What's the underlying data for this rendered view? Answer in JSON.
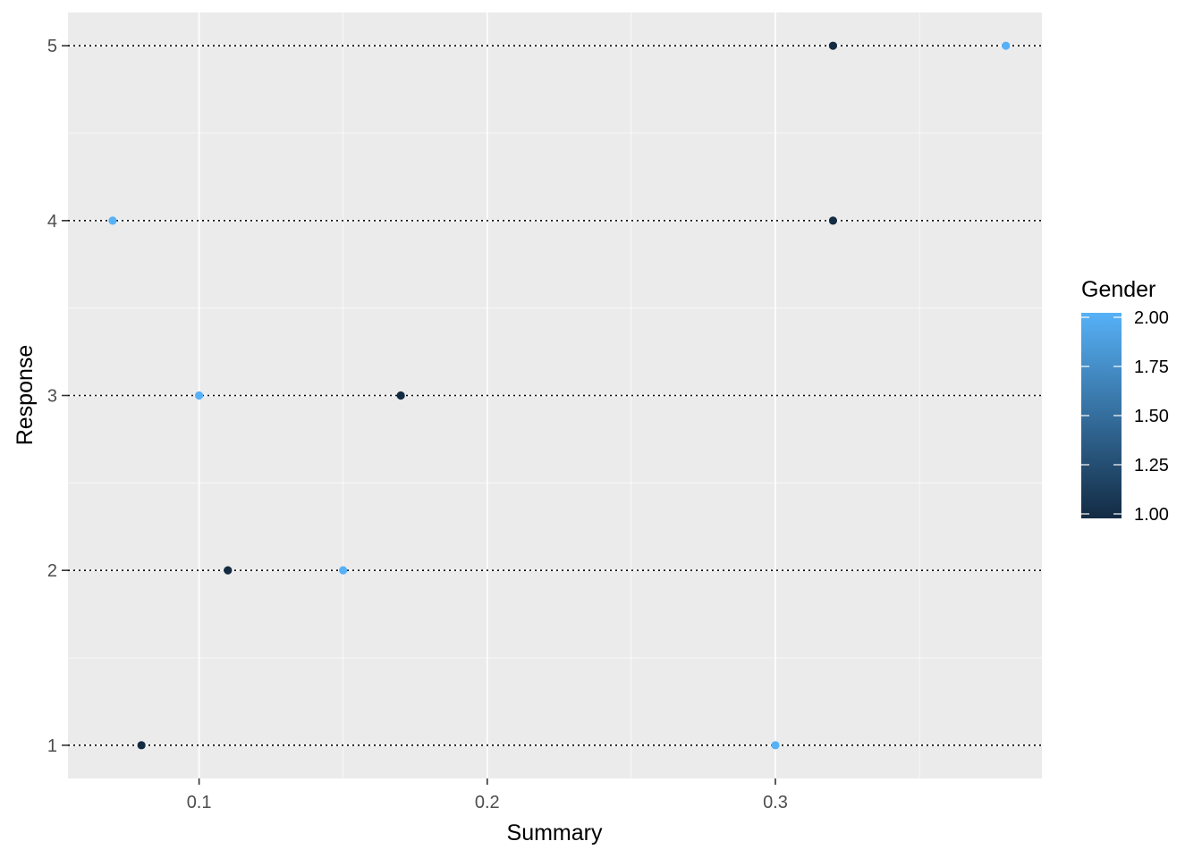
{
  "chart_data": {
    "type": "scatter",
    "xlabel": "Summary",
    "ylabel": "Response",
    "xlim": [
      0.0545,
      0.3925
    ],
    "ylim": [
      0.81,
      5.19
    ],
    "x_ticks": [
      0.1,
      0.2,
      0.3
    ],
    "x_tick_labels": [
      "0.1",
      "0.2",
      "0.3"
    ],
    "y_ticks": [
      1,
      2,
      3,
      4,
      5
    ],
    "y_tick_labels": [
      "1",
      "2",
      "3",
      "4",
      "5"
    ],
    "grid": true,
    "reference_lines": {
      "orientation": "horizontal",
      "style": "dotted",
      "values": [
        1,
        2,
        3,
        4,
        5
      ]
    },
    "points": [
      {
        "x": 0.08,
        "y": 1,
        "gender": 1
      },
      {
        "x": 0.3,
        "y": 1,
        "gender": 2
      },
      {
        "x": 0.11,
        "y": 2,
        "gender": 1
      },
      {
        "x": 0.15,
        "y": 2,
        "gender": 2
      },
      {
        "x": 0.1,
        "y": 3,
        "gender": 2
      },
      {
        "x": 0.17,
        "y": 3,
        "gender": 1
      },
      {
        "x": 0.07,
        "y": 4,
        "gender": 2
      },
      {
        "x": 0.32,
        "y": 4,
        "gender": 1
      },
      {
        "x": 0.32,
        "y": 5,
        "gender": 1
      },
      {
        "x": 0.38,
        "y": 5,
        "gender": 2
      }
    ],
    "color_scale": {
      "title": "Gender",
      "range": [
        1,
        2
      ],
      "low_color": "#132B43",
      "high_color": "#56B1F7",
      "breaks": [
        1.0,
        1.25,
        1.5,
        1.75,
        2.0
      ],
      "break_labels": [
        "1.00",
        "1.25",
        "1.50",
        "1.75",
        "2.00"
      ],
      "placement": "right"
    }
  },
  "colors": {
    "panel_background": "#EBEBEB",
    "grid_major": "#FFFFFF",
    "reference_line": "#000000"
  }
}
